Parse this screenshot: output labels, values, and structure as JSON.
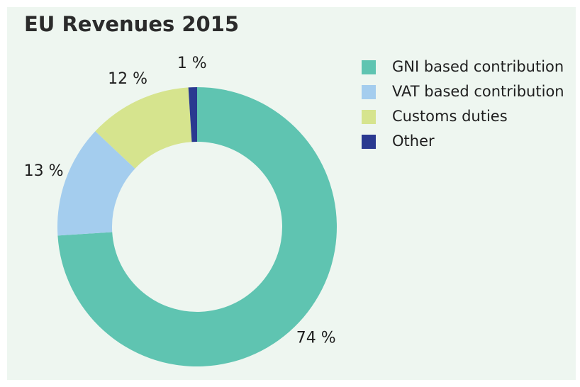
{
  "chart_data": {
    "type": "donut",
    "title": "EU Revenues 2015",
    "categories": [
      "GNI based contribution",
      "VAT based contribution",
      "Customs duties",
      "Other"
    ],
    "values": [
      74,
      13,
      12,
      1
    ],
    "value_labels": [
      "74 %",
      "13 %",
      "12 %",
      "1 %"
    ],
    "colors": [
      "#5fc4b1",
      "#a4cdee",
      "#d6e48e",
      "#2a3990"
    ],
    "legend": "right"
  }
}
